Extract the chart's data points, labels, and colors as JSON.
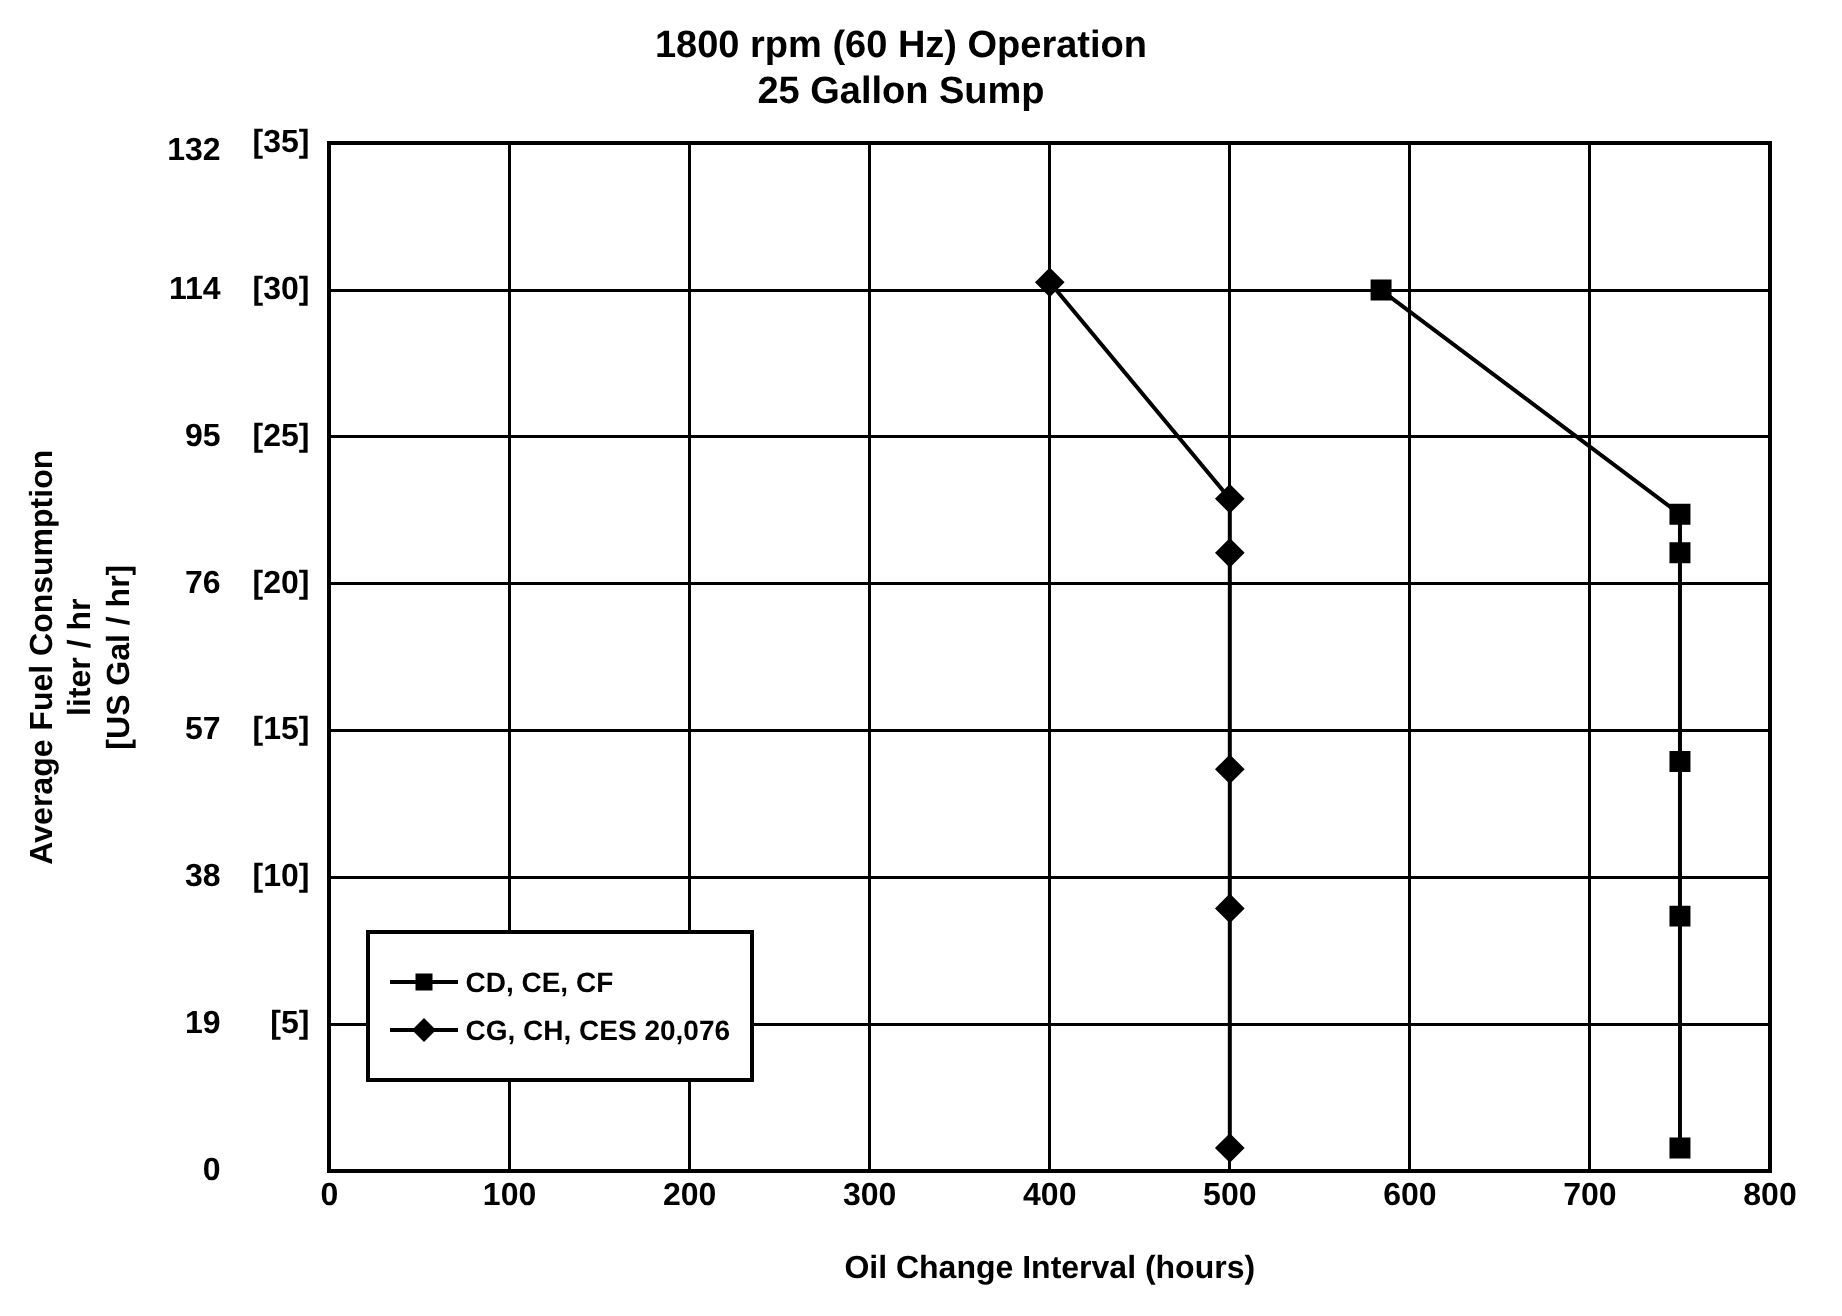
{
  "chart_data": {
    "type": "line",
    "title": "1800 rpm (60 Hz) Operation\n25 Gallon Sump",
    "xlabel": "Oil Change Interval (hours)",
    "ylabel": "Average Fuel Consumption\nliter / hr\n[US Gal / hr]",
    "xlim": [
      0,
      800
    ],
    "xticks": [
      0,
      100,
      200,
      300,
      400,
      500,
      600,
      700,
      800
    ],
    "ylim": [
      0,
      133
    ],
    "yticks": [
      0,
      19,
      38,
      57,
      76,
      95,
      114,
      132
    ],
    "y2lim": [
      0,
      35
    ],
    "y2ticks": [
      {
        "value": 5,
        "label": "[5]"
      },
      {
        "value": 10,
        "label": "[10]"
      },
      {
        "value": 15,
        "label": "[15]"
      },
      {
        "value": 20,
        "label": "[20]"
      },
      {
        "value": 25,
        "label": "[25]"
      },
      {
        "value": 30,
        "label": "[30]"
      },
      {
        "value": 35,
        "label": "[35]"
      }
    ],
    "grid": true,
    "legend": "bottom left",
    "series": [
      {
        "name": "CD, CE, CF",
        "color": "#000000",
        "marker": "square",
        "x": [
          584,
          750,
          750,
          750,
          750,
          750
        ],
        "values": [
          114,
          85,
          80,
          53,
          33,
          3
        ]
      },
      {
        "name": "CG, CH, CES 20,076",
        "color": "#000000",
        "marker": "diamond",
        "x": [
          400,
          500,
          500,
          500,
          500,
          500
        ],
        "values": [
          115,
          87,
          80,
          52,
          34,
          3
        ]
      }
    ]
  }
}
